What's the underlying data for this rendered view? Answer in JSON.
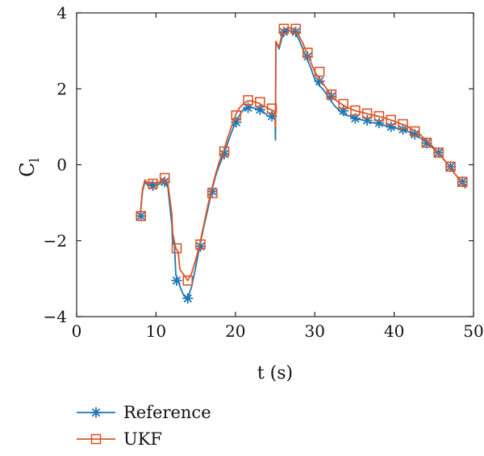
{
  "chart_data": {
    "type": "line",
    "xlabel": "t (s)",
    "ylabel": "C",
    "ylabel_subscript": "l",
    "xlim": [
      0,
      50
    ],
    "ylim": [
      -4,
      4
    ],
    "xticks": [
      0,
      10,
      20,
      30,
      40,
      50
    ],
    "yticks": [
      4,
      2,
      0,
      -2,
      -4
    ],
    "xtick_labels": [
      "0",
      "10",
      "20",
      "30",
      "40",
      "50"
    ],
    "ytick_labels": [
      "4",
      "2",
      "0",
      "−2",
      "−4"
    ],
    "grid": false,
    "legend": "bottom-left-below",
    "series": [
      {
        "name": "Reference",
        "color": "#1f77b4",
        "marker": "asterisk",
        "x": [
          8.0,
          8.3,
          8.6,
          9.0,
          9.5,
          10.0,
          10.5,
          11.0,
          11.5,
          12.0,
          12.1,
          12.3,
          12.5,
          12.8,
          13.0,
          13.5,
          14.0,
          14.5,
          15.0,
          15.5,
          16.0,
          16.5,
          17.0,
          17.5,
          18.0,
          18.5,
          19.0,
          19.5,
          20.0,
          20.5,
          21.0,
          21.5,
          22.0,
          22.5,
          23.0,
          23.5,
          24.0,
          24.5,
          25.0,
          25.05,
          25.1,
          25.5,
          26.0,
          26.5,
          27.0,
          27.5,
          28.0,
          28.5,
          29.0,
          29.5,
          30.0,
          30.5,
          31.0,
          31.5,
          32.0,
          32.5,
          33.0,
          33.5,
          34.0,
          34.5,
          35.0,
          35.5,
          36.0,
          36.5,
          37.0,
          37.5,
          38.0,
          38.5,
          39.0,
          39.5,
          40.0,
          40.5,
          41.0,
          41.5,
          42.0,
          42.5,
          43.0,
          43.5,
          44.0,
          44.5,
          45.0,
          45.5,
          46.0,
          46.5,
          47.0,
          47.5,
          48.0,
          48.5,
          49.0
        ],
        "values": [
          -1.35,
          -0.7,
          -0.45,
          -0.55,
          -0.5,
          -0.55,
          -0.5,
          -0.42,
          -0.6,
          -1.6,
          -2.1,
          -2.0,
          -2.9,
          -3.05,
          -3.2,
          -3.45,
          -3.52,
          -3.2,
          -2.7,
          -2.15,
          -1.65,
          -1.2,
          -0.7,
          -0.3,
          0.0,
          0.25,
          0.55,
          0.85,
          1.1,
          1.3,
          1.45,
          1.5,
          1.52,
          1.48,
          1.45,
          1.4,
          1.3,
          1.25,
          1.2,
          0.65,
          3.25,
          3.05,
          3.45,
          3.55,
          3.52,
          3.5,
          3.3,
          3.05,
          2.8,
          2.55,
          2.25,
          2.1,
          2.0,
          1.85,
          1.7,
          1.55,
          1.45,
          1.35,
          1.3,
          1.28,
          1.22,
          1.2,
          1.18,
          1.15,
          1.12,
          1.1,
          1.08,
          1.05,
          1.03,
          1.0,
          0.97,
          0.95,
          0.93,
          0.9,
          0.85,
          0.8,
          0.75,
          0.68,
          0.6,
          0.5,
          0.42,
          0.32,
          0.2,
          0.08,
          -0.05,
          -0.2,
          -0.33,
          -0.45,
          -0.62
        ],
        "marker_x": [
          8.1,
          9.6,
          11.1,
          12.6,
          14.0,
          15.6,
          17.1,
          18.6,
          20.1,
          21.6,
          23.1,
          24.6,
          26.1,
          27.6,
          29.1,
          30.6,
          32.1,
          33.6,
          35.1,
          36.6,
          38.1,
          39.6,
          41.1,
          42.6,
          44.1,
          45.6,
          47.1,
          48.6
        ],
        "marker_values": [
          -1.35,
          -0.55,
          -0.45,
          -3.05,
          -3.52,
          -2.15,
          -0.7,
          0.28,
          1.12,
          1.5,
          1.45,
          1.28,
          3.5,
          3.5,
          2.85,
          2.2,
          1.8,
          1.42,
          1.22,
          1.17,
          1.1,
          1.0,
          0.93,
          0.8,
          0.57,
          0.32,
          -0.05,
          -0.45
        ]
      },
      {
        "name": "UKF",
        "color": "#d9582a",
        "marker": "square",
        "x": [
          8.0,
          8.3,
          8.6,
          9.0,
          9.5,
          10.0,
          10.5,
          11.0,
          11.5,
          12.0,
          12.1,
          12.3,
          12.5,
          12.8,
          13.0,
          13.5,
          14.0,
          14.5,
          15.0,
          15.5,
          16.0,
          16.5,
          17.0,
          17.5,
          18.0,
          18.5,
          19.0,
          19.5,
          20.0,
          20.5,
          21.0,
          21.5,
          22.0,
          22.5,
          23.0,
          23.5,
          24.0,
          24.5,
          25.0,
          25.05,
          25.1,
          25.5,
          26.0,
          26.5,
          27.0,
          27.5,
          28.0,
          28.5,
          29.0,
          29.5,
          30.0,
          30.5,
          31.0,
          31.5,
          32.0,
          32.5,
          33.0,
          33.5,
          34.0,
          34.5,
          35.0,
          35.5,
          36.0,
          36.5,
          37.0,
          37.5,
          38.0,
          38.5,
          39.0,
          39.5,
          40.0,
          40.5,
          41.0,
          41.5,
          42.0,
          42.5,
          43.0,
          43.5,
          44.0,
          44.5,
          45.0,
          45.5,
          46.0,
          46.5,
          47.0,
          47.5,
          48.0,
          48.5,
          49.0
        ],
        "values": [
          -1.35,
          -0.65,
          -0.4,
          -0.5,
          -0.45,
          -0.5,
          -0.45,
          -0.35,
          -0.5,
          -1.3,
          -1.8,
          -2.0,
          -2.2,
          -2.3,
          -2.75,
          -2.9,
          -3.05,
          -2.85,
          -2.5,
          -2.1,
          -1.6,
          -1.1,
          -0.65,
          -0.25,
          0.1,
          0.35,
          0.7,
          1.0,
          1.3,
          1.5,
          1.6,
          1.68,
          1.68,
          1.65,
          1.62,
          1.55,
          1.5,
          1.45,
          1.4,
          1.0,
          3.25,
          3.1,
          3.55,
          3.6,
          3.6,
          3.58,
          3.4,
          3.2,
          2.95,
          2.7,
          2.45,
          2.3,
          2.15,
          2.0,
          1.85,
          1.72,
          1.65,
          1.58,
          1.52,
          1.48,
          1.43,
          1.4,
          1.38,
          1.35,
          1.32,
          1.3,
          1.28,
          1.25,
          1.22,
          1.18,
          1.15,
          1.1,
          1.07,
          1.03,
          0.97,
          0.9,
          0.85,
          0.75,
          0.65,
          0.55,
          0.45,
          0.32,
          0.2,
          0.08,
          -0.05,
          -0.2,
          -0.33,
          -0.45,
          -0.6
        ],
        "marker_x": [
          8.1,
          9.6,
          11.1,
          12.6,
          14.0,
          15.6,
          17.1,
          18.6,
          20.1,
          21.6,
          23.1,
          24.6,
          26.1,
          27.6,
          29.1,
          30.6,
          32.1,
          33.6,
          35.1,
          36.6,
          38.1,
          39.6,
          41.1,
          42.6,
          44.1,
          45.6,
          47.1,
          48.6
        ],
        "marker_values": [
          -1.35,
          -0.5,
          -0.35,
          -2.2,
          -3.05,
          -2.1,
          -0.75,
          0.35,
          1.3,
          1.7,
          1.65,
          1.48,
          3.58,
          3.58,
          2.95,
          2.45,
          1.85,
          1.6,
          1.43,
          1.35,
          1.28,
          1.18,
          1.07,
          0.88,
          0.58,
          0.32,
          -0.05,
          -0.45
        ]
      }
    ]
  }
}
